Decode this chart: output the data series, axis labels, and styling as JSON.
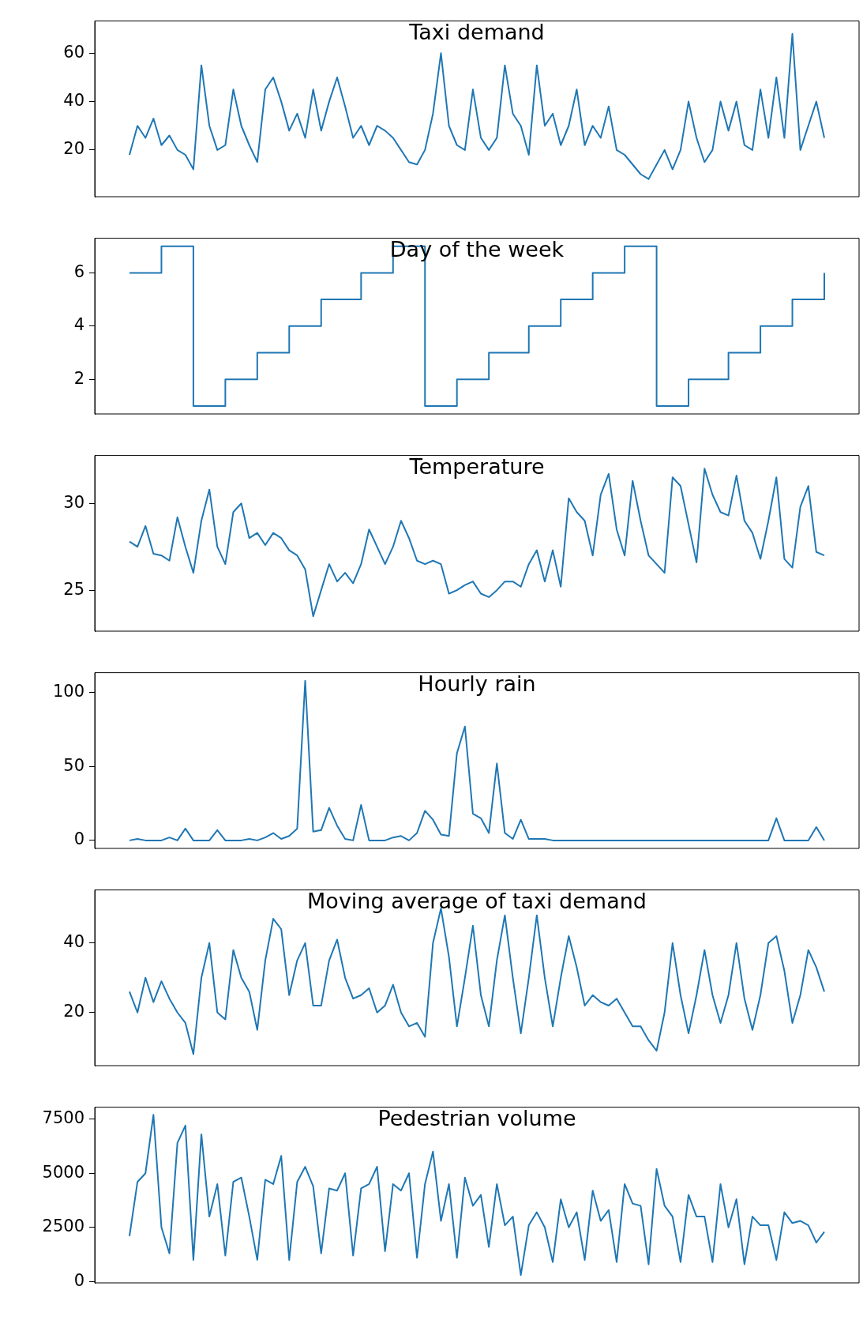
{
  "chart_data": [
    {
      "type": "line",
      "title": "Taxi demand",
      "color": "#1f77b4",
      "ylim": [
        0.7,
        73.3
      ],
      "yticks": [
        20,
        40,
        60
      ],
      "grid": false,
      "categories": [
        null,
        null,
        null,
        null,
        null,
        null,
        null,
        null,
        null,
        null,
        null,
        null,
        null,
        null,
        null,
        null,
        null,
        null,
        null,
        null,
        null,
        null,
        null,
        null,
        null,
        null,
        null,
        null,
        null,
        null,
        null,
        null,
        null,
        null,
        null,
        null,
        null,
        null,
        null,
        null,
        null,
        null,
        null,
        null,
        null,
        null,
        null,
        null,
        null,
        null,
        null,
        null,
        null,
        null,
        null,
        null,
        null,
        null,
        null,
        null,
        null,
        null,
        null,
        null,
        null,
        null,
        null,
        null,
        null,
        null,
        null,
        null,
        null,
        null,
        null,
        null,
        null,
        null,
        null,
        null,
        null,
        null,
        null,
        null,
        null,
        null,
        null,
        null
      ],
      "values": [
        18,
        30,
        25,
        33,
        22,
        26,
        20,
        18,
        12,
        55,
        30,
        20,
        22,
        45,
        30,
        22,
        15,
        45,
        50,
        40,
        28,
        35,
        25,
        45,
        28,
        40,
        50,
        38,
        25,
        30,
        22,
        30,
        28,
        25,
        20,
        15,
        14,
        20,
        35,
        60,
        30,
        22,
        20,
        45,
        25,
        20,
        25,
        55,
        35,
        30,
        18,
        55,
        30,
        35,
        22,
        30,
        45,
        22,
        30,
        25,
        38,
        20,
        18,
        14,
        10,
        8,
        14,
        20,
        12,
        20,
        40,
        25,
        15,
        20,
        40,
        28,
        40,
        22,
        20,
        45,
        25,
        50,
        25,
        68,
        20,
        30,
        40,
        25
      ]
    },
    {
      "type": "step",
      "title": "Day of the week",
      "color": "#1f77b4",
      "ylim": [
        0.7,
        7.3
      ],
      "yticks": [
        2,
        4,
        6
      ],
      "grid": false,
      "categories": [
        null,
        null,
        null,
        null,
        null,
        null,
        null,
        null,
        null,
        null,
        null,
        null,
        null,
        null,
        null,
        null,
        null,
        null,
        null,
        null,
        null,
        null,
        null,
        null,
        null,
        null,
        null,
        null,
        null,
        null,
        null,
        null,
        null,
        null,
        null,
        null,
        null,
        null,
        null,
        null,
        null,
        null,
        null,
        null,
        null,
        null,
        null,
        null,
        null,
        null,
        null,
        null,
        null,
        null,
        null,
        null,
        null,
        null,
        null,
        null,
        null,
        null,
        null,
        null,
        null,
        null,
        null,
        null,
        null,
        null,
        null,
        null,
        null,
        null,
        null,
        null,
        null,
        null,
        null,
        null,
        null,
        null,
        null,
        null,
        null,
        null,
        null,
        null
      ],
      "values": [
        6,
        6,
        6,
        6,
        7,
        7,
        7,
        7,
        1,
        1,
        1,
        1,
        2,
        2,
        2,
        2,
        3,
        3,
        3,
        3,
        4,
        4,
        4,
        4,
        5,
        5,
        5,
        5,
        5,
        6,
        6,
        6,
        6,
        7,
        7,
        7,
        7,
        1,
        1,
        1,
        1,
        2,
        2,
        2,
        2,
        3,
        3,
        3,
        3,
        3,
        4,
        4,
        4,
        4,
        5,
        5,
        5,
        5,
        6,
        6,
        6,
        6,
        7,
        7,
        7,
        7,
        1,
        1,
        1,
        1,
        2,
        2,
        2,
        2,
        2,
        3,
        3,
        3,
        3,
        4,
        4,
        4,
        4,
        5,
        5,
        5,
        5,
        6
      ]
    },
    {
      "type": "line",
      "title": "Temperature",
      "color": "#1f77b4",
      "ylim": [
        22.64,
        32.76
      ],
      "yticks": [
        25,
        30
      ],
      "grid": false,
      "categories": [
        null,
        null,
        null,
        null,
        null,
        null,
        null,
        null,
        null,
        null,
        null,
        null,
        null,
        null,
        null,
        null,
        null,
        null,
        null,
        null,
        null,
        null,
        null,
        null,
        null,
        null,
        null,
        null,
        null,
        null,
        null,
        null,
        null,
        null,
        null,
        null,
        null,
        null,
        null,
        null,
        null,
        null,
        null,
        null,
        null,
        null,
        null,
        null,
        null,
        null,
        null,
        null,
        null,
        null,
        null,
        null,
        null,
        null,
        null,
        null,
        null,
        null,
        null,
        null,
        null,
        null,
        null,
        null,
        null,
        null,
        null,
        null,
        null,
        null,
        null,
        null,
        null,
        null,
        null,
        null,
        null,
        null,
        null,
        null,
        null,
        null,
        null,
        null
      ],
      "values": [
        27.8,
        27.5,
        28.7,
        27.1,
        27.0,
        26.7,
        29.2,
        27.5,
        26,
        29,
        30.8,
        27.5,
        26.5,
        29.5,
        30,
        28,
        28.3,
        27.6,
        28.3,
        28,
        27.3,
        27,
        26.2,
        23.5,
        25,
        26.5,
        25.5,
        26,
        25.4,
        26.5,
        28.5,
        27.5,
        26.5,
        27.5,
        29,
        28,
        26.7,
        26.5,
        26.7,
        26.5,
        24.8,
        25,
        25.3,
        25.5,
        24.8,
        24.6,
        25,
        25.5,
        25.5,
        25.2,
        26.5,
        27.3,
        25.5,
        27.3,
        25.2,
        30.3,
        29.5,
        29,
        27,
        30.5,
        31.7,
        28.5,
        27,
        31.3,
        29,
        27,
        26.5,
        26,
        31.5,
        31,
        28.8,
        26.6,
        32,
        30.5,
        29.5,
        29.3,
        31.6,
        29,
        28.3,
        26.8,
        29,
        31.5,
        26.8,
        26.3,
        29.8,
        31,
        27.2,
        27
      ]
    },
    {
      "type": "line",
      "title": "Hourly rain",
      "color": "#1f77b4",
      "ylim": [
        -5.4,
        113.4
      ],
      "yticks": [
        0,
        50,
        100
      ],
      "grid": false,
      "categories": [
        null,
        null,
        null,
        null,
        null,
        null,
        null,
        null,
        null,
        null,
        null,
        null,
        null,
        null,
        null,
        null,
        null,
        null,
        null,
        null,
        null,
        null,
        null,
        null,
        null,
        null,
        null,
        null,
        null,
        null,
        null,
        null,
        null,
        null,
        null,
        null,
        null,
        null,
        null,
        null,
        null,
        null,
        null,
        null,
        null,
        null,
        null,
        null,
        null,
        null,
        null,
        null,
        null,
        null,
        null,
        null,
        null,
        null,
        null,
        null,
        null,
        null,
        null,
        null,
        null,
        null,
        null,
        null,
        null,
        null,
        null,
        null,
        null,
        null,
        null,
        null,
        null,
        null,
        null,
        null,
        null,
        null,
        null,
        null,
        null,
        null,
        null,
        null
      ],
      "values": [
        0,
        1,
        0,
        0,
        0,
        2,
        0,
        8,
        0,
        0,
        0,
        7,
        0,
        0,
        0,
        1,
        0,
        2,
        5,
        1,
        3,
        8,
        108,
        6,
        7,
        22,
        10,
        1,
        0,
        24,
        0,
        0,
        0,
        2,
        3,
        0,
        5,
        20,
        14,
        4,
        3,
        59,
        77,
        18,
        15,
        5,
        52,
        5,
        1,
        14,
        1,
        1,
        1,
        0,
        0,
        0,
        0,
        0,
        0,
        0,
        0,
        0,
        0,
        0,
        0,
        0,
        0,
        0,
        0,
        0,
        0,
        0,
        0,
        0,
        0,
        0,
        0,
        0,
        0,
        0,
        0,
        15,
        0,
        0,
        0,
        0,
        9,
        0
      ]
    },
    {
      "type": "line",
      "title": "Moving average of taxi demand",
      "color": "#1f77b4",
      "ylim": [
        4.7,
        55.3
      ],
      "yticks": [
        20,
        40
      ],
      "grid": false,
      "categories": [
        null,
        null,
        null,
        null,
        null,
        null,
        null,
        null,
        null,
        null,
        null,
        null,
        null,
        null,
        null,
        null,
        null,
        null,
        null,
        null,
        null,
        null,
        null,
        null,
        null,
        null,
        null,
        null,
        null,
        null,
        null,
        null,
        null,
        null,
        null,
        null,
        null,
        null,
        null,
        null,
        null,
        null,
        null,
        null,
        null,
        null,
        null,
        null,
        null,
        null,
        null,
        null,
        null,
        null,
        null,
        null,
        null,
        null,
        null,
        null,
        null,
        null,
        null,
        null,
        null,
        null,
        null,
        null,
        null,
        null,
        null,
        null,
        null,
        null,
        null,
        null,
        null,
        null,
        null,
        null,
        null,
        null,
        null,
        null,
        null,
        null,
        null,
        null
      ],
      "values": [
        26,
        20,
        30,
        23,
        29,
        24,
        20,
        17,
        8,
        30,
        40,
        20,
        18,
        38,
        30,
        26,
        15,
        35,
        47,
        44,
        25,
        35,
        40,
        22,
        22,
        35,
        41,
        30,
        24,
        25,
        27,
        20,
        22,
        28,
        20,
        16,
        17,
        13,
        40,
        50,
        36,
        16,
        30,
        45,
        25,
        16,
        35,
        48,
        30,
        14,
        30,
        48,
        30,
        16,
        30,
        42,
        33,
        22,
        25,
        23,
        22,
        24,
        20,
        16,
        16,
        12,
        9,
        20,
        40,
        25,
        14,
        25,
        38,
        25,
        17,
        25,
        40,
        24,
        15,
        25,
        40,
        42,
        32,
        17,
        25,
        38,
        33,
        26
      ]
    },
    {
      "type": "line",
      "title": "Pedestrian volume",
      "color": "#1f77b4",
      "ylim": [
        -60,
        8050
      ],
      "yticks": [
        0,
        2500,
        5000,
        7500
      ],
      "grid": false,
      "categories": [
        null,
        null,
        null,
        null,
        null,
        null,
        null,
        null,
        null,
        null,
        null,
        null,
        null,
        null,
        null,
        null,
        null,
        null,
        null,
        null,
        null,
        null,
        null,
        null,
        null,
        null,
        null,
        null,
        null,
        null,
        null,
        null,
        null,
        null,
        null,
        null,
        null,
        null,
        null,
        null,
        null,
        null,
        null,
        null,
        null,
        null,
        null,
        null,
        null,
        null,
        null,
        null,
        null,
        null,
        null,
        null,
        null,
        null,
        null,
        null,
        null,
        null,
        null,
        null,
        null,
        null,
        null,
        null,
        null,
        null,
        null,
        null,
        null,
        null,
        null,
        null,
        null,
        null,
        null,
        null,
        null,
        null,
        null,
        null,
        null,
        null,
        null,
        null
      ],
      "values": [
        2100,
        4600,
        5000,
        7700,
        2500,
        1300,
        6400,
        7200,
        1000,
        6800,
        3000,
        4500,
        1200,
        4600,
        4800,
        3000,
        1000,
        4700,
        4500,
        5800,
        1000,
        4600,
        5300,
        4400,
        1300,
        4300,
        4200,
        5000,
        1200,
        4300,
        4500,
        5300,
        1400,
        4500,
        4200,
        5000,
        1100,
        4500,
        6000,
        2800,
        4500,
        1100,
        4800,
        3500,
        4000,
        1600,
        4500,
        2600,
        3000,
        300,
        2600,
        3200,
        2500,
        900,
        3800,
        2500,
        3200,
        1000,
        4200,
        2800,
        3300,
        900,
        4500,
        3600,
        3500,
        800,
        5200,
        3500,
        3000,
        900,
        4000,
        3000,
        3000,
        900,
        4500,
        2500,
        3800,
        800,
        3000,
        2600,
        2600,
        1000,
        3200,
        2700,
        2800,
        2600,
        1800,
        2300
      ]
    }
  ]
}
